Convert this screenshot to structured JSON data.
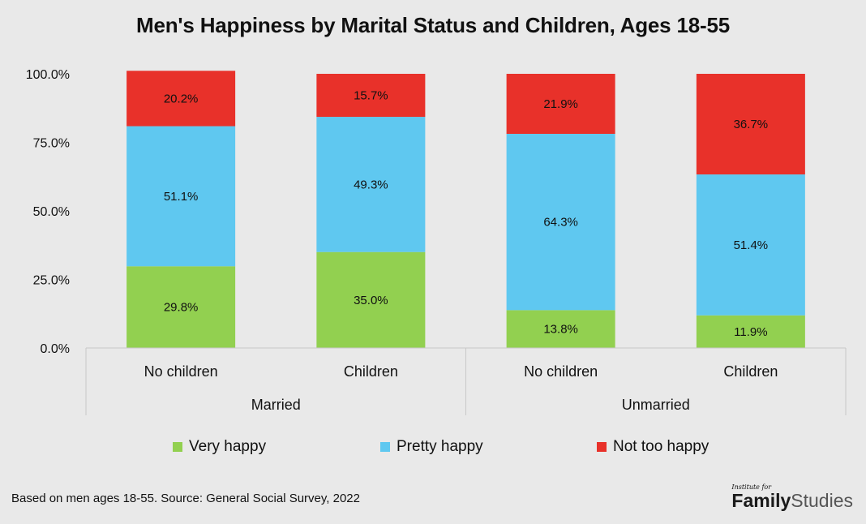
{
  "chart_data": {
    "type": "bar",
    "stacked": true,
    "title": "Men's Happiness by Marital Status and Children, Ages 18-55",
    "groups": [
      {
        "label": "Married",
        "categories": [
          "No children",
          "Children"
        ]
      },
      {
        "label": "Unmarried",
        "categories": [
          "No children",
          "Children"
        ]
      }
    ],
    "categories": [
      "No children",
      "Children",
      "No children",
      "Children"
    ],
    "series": [
      {
        "name": "Very happy",
        "color": "#92d050",
        "values": [
          29.8,
          35.0,
          13.8,
          11.9
        ],
        "labels": [
          "29.8%",
          "35.0%",
          "13.8%",
          "11.9%"
        ]
      },
      {
        "name": "Pretty happy",
        "color": "#5fc8f0",
        "values": [
          51.1,
          49.3,
          64.3,
          51.4
        ],
        "labels": [
          "51.1%",
          "49.3%",
          "64.3%",
          "51.4%"
        ]
      },
      {
        "name": "Not too happy",
        "color": "#e8312a",
        "values": [
          20.2,
          15.7,
          21.9,
          36.7
        ],
        "labels": [
          "20.2%",
          "15.7%",
          "21.9%",
          "36.7%"
        ]
      }
    ],
    "ylim": [
      0,
      100
    ],
    "yticks": [
      {
        "value": 0,
        "label": "0.0%"
      },
      {
        "value": 25,
        "label": "25.0%"
      },
      {
        "value": 50,
        "label": "50.0%"
      },
      {
        "value": 75,
        "label": "75.0%"
      },
      {
        "value": 100,
        "label": "100.0%"
      }
    ],
    "legend_position": "bottom",
    "grid": false
  },
  "source_note": "Based on men ages 18-55. Source: General Social Survey, 2022",
  "brand": {
    "small": "Institute for",
    "name_bold": "Family",
    "name_regular": "Studies"
  }
}
